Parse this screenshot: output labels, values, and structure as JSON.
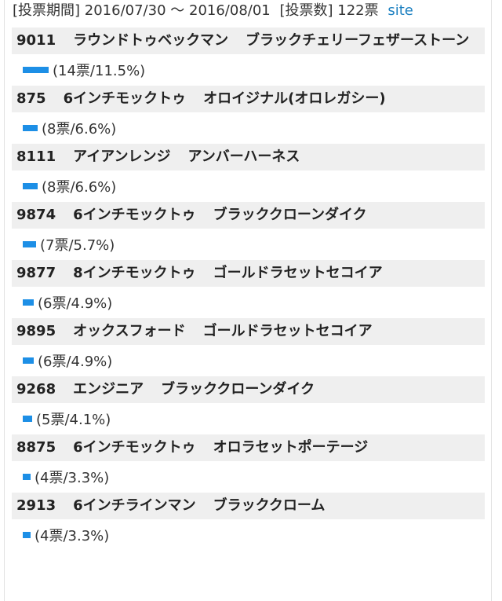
{
  "header": {
    "period_label": "[投票期間]",
    "period_start": "2016/07/30",
    "period_sep": "〜",
    "period_end": "2016/08/01",
    "count_label": "[投票数]",
    "count_value": "122票",
    "site_link": "site"
  },
  "colors": {
    "bar": "#1d8fe6",
    "row_bg": "#efefef",
    "link": "#1a7fc0"
  },
  "items": [
    {
      "num": "9011",
      "model": "ラウンドトゥベックマン",
      "color": "ブラックチェリーフェザーストーン",
      "stat": "(14票/11.5%)",
      "pct": 11.5
    },
    {
      "num": "875",
      "model": "6インチモックトゥ",
      "color": "オロイジナル(オロレガシー)",
      "stat": "(8票/6.6%)",
      "pct": 6.6
    },
    {
      "num": "8111",
      "model": "アイアンレンジ",
      "color": "アンバーハーネス",
      "stat": "(8票/6.6%)",
      "pct": 6.6
    },
    {
      "num": "9874",
      "model": "6インチモックトゥ",
      "color": "ブラッククローンダイク",
      "stat": "(7票/5.7%)",
      "pct": 5.7
    },
    {
      "num": "9877",
      "model": "8インチモックトゥ",
      "color": "ゴールドラセットセコイア",
      "stat": "(6票/4.9%)",
      "pct": 4.9
    },
    {
      "num": "9895",
      "model": "オックスフォード",
      "color": "ゴールドラセットセコイア",
      "stat": "(6票/4.9%)",
      "pct": 4.9
    },
    {
      "num": "9268",
      "model": "エンジニア",
      "color": "ブラッククローンダイク",
      "stat": "(5票/4.1%)",
      "pct": 4.1
    },
    {
      "num": "8875",
      "model": "6インチモックトゥ",
      "color": "オロラセットポーテージ",
      "stat": "(4票/3.3%)",
      "pct": 3.3
    },
    {
      "num": "2913",
      "model": "6インチラインマン",
      "color": "ブラッククローム",
      "stat": "(4票/3.3%)",
      "pct": 3.3
    }
  ]
}
